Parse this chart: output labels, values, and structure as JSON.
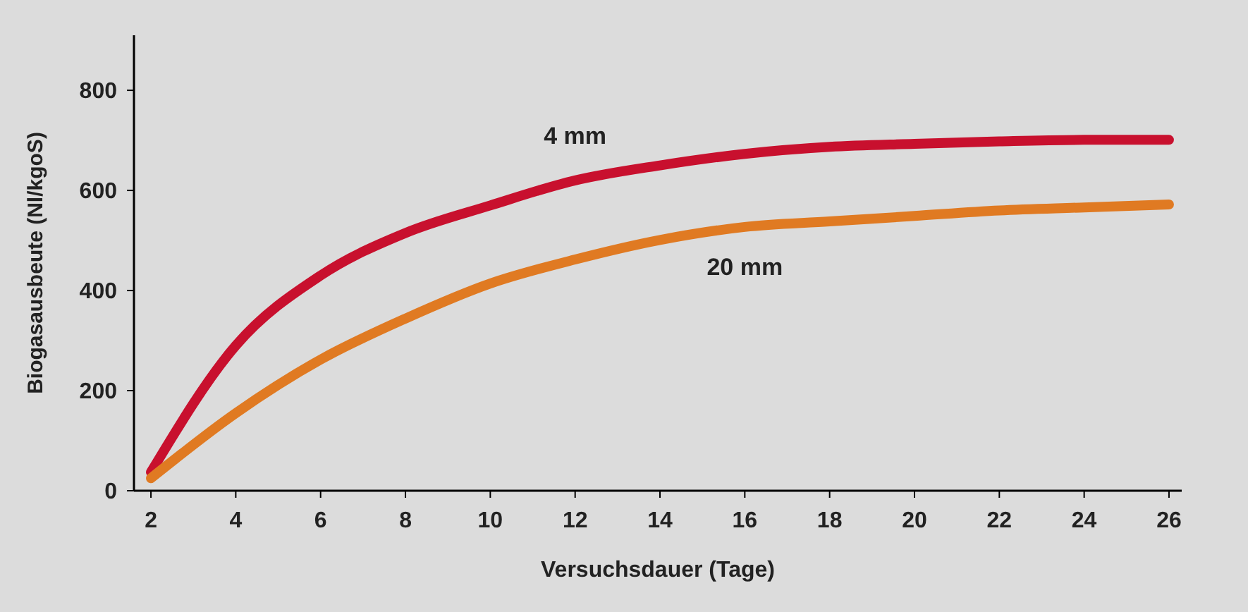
{
  "chart_data": {
    "type": "line",
    "xlabel": "Versuchsdauer (Tage)",
    "ylabel": "Biogasausbeute (Nl/kgoS)",
    "x": [
      2,
      4,
      6,
      8,
      10,
      12,
      14,
      16,
      18,
      20,
      22,
      24,
      26
    ],
    "series": [
      {
        "name": "4 mm",
        "color": "#c8102e",
        "values": [
          37,
          290,
          430,
          515,
          570,
          620,
          650,
          673,
          687,
          693,
          698,
          701,
          701
        ]
      },
      {
        "name": "20 mm",
        "color": "#e07a22",
        "values": [
          25,
          155,
          262,
          344,
          414,
          462,
          501,
          527,
          538,
          549,
          560,
          566,
          572
        ]
      }
    ],
    "xlim": [
      1.6,
      26.3
    ],
    "ylim": [
      0,
      910
    ],
    "xticks": [
      2,
      4,
      6,
      8,
      10,
      12,
      14,
      16,
      18,
      20,
      22,
      24,
      26
    ],
    "yticks": [
      0,
      200,
      400,
      600,
      800
    ],
    "grid": false,
    "legend": false,
    "marker": "none",
    "line_style": "solid"
  }
}
